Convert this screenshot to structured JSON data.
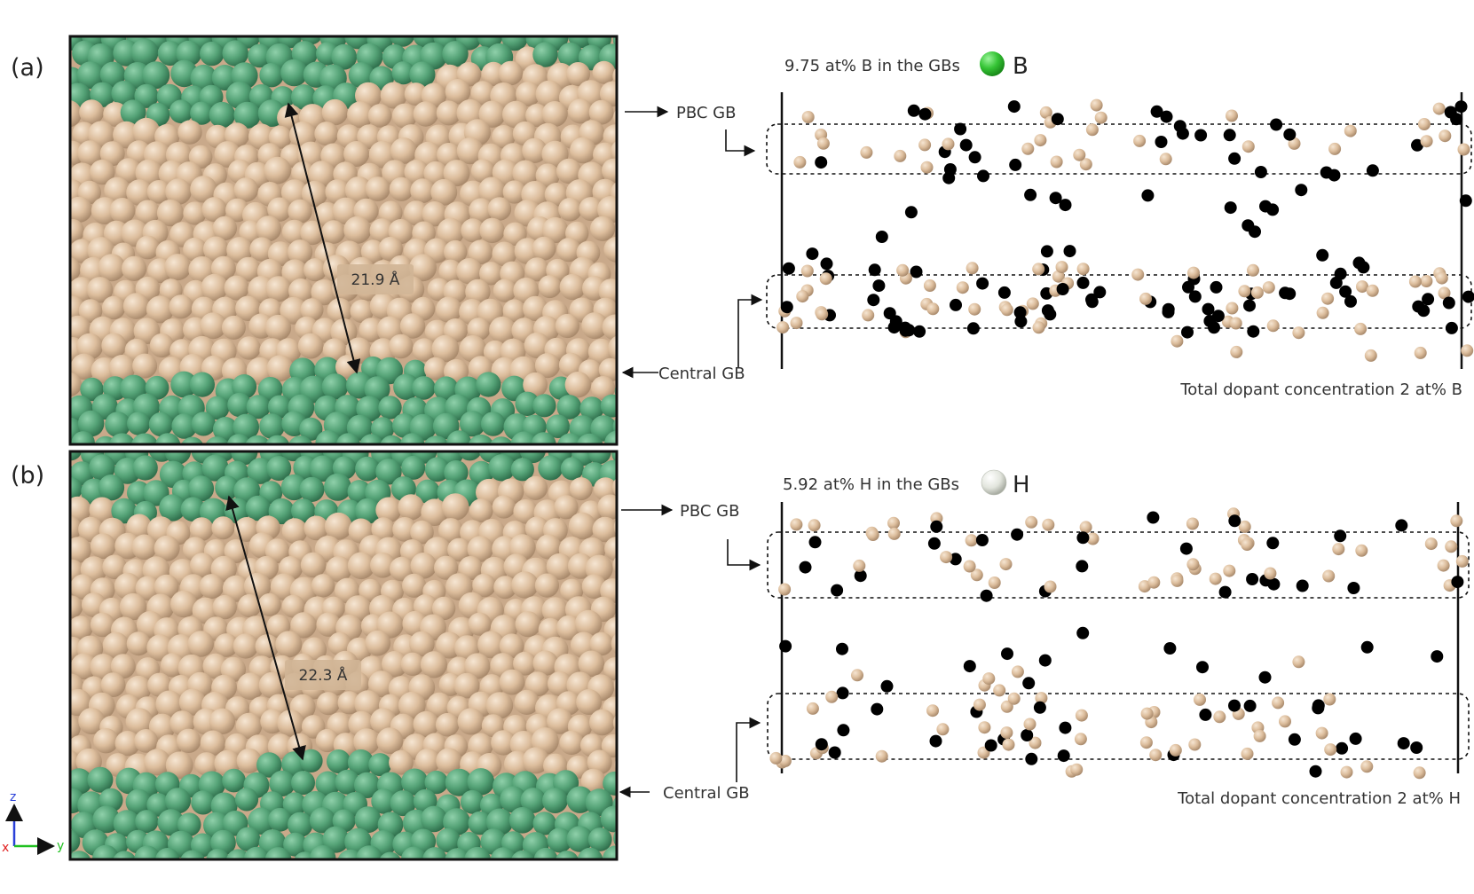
{
  "panels": [
    {
      "letter": "(a)",
      "pbc_label": "PBC GB",
      "central_label": "Central GB",
      "distance_label": "21.9 Å",
      "gb_concentration": "9.75 at% B in the GBs",
      "dopant_symbol": "B",
      "total_concentration": "Total dopant concentration 2 at% B",
      "dopant_color": "#3cc83c"
    },
    {
      "letter": "(b)",
      "pbc_label": "PBC GB",
      "central_label": "Central GB",
      "distance_label": "22.3 Å",
      "gb_concentration": "5.92 at% H in the GBs",
      "dopant_symbol": "H",
      "total_concentration": "Total dopant concentration 2 at% H",
      "dopant_color": "#e4e7e0"
    }
  ],
  "axes": {
    "z": "z",
    "x": "x",
    "y": "y"
  },
  "colors": {
    "grain_atom": "#dcbd9c",
    "gb_atom": "#55a377",
    "frame": "#111111",
    "axis_z": "#2a40d8",
    "axis_x": "#e02020",
    "axis_y": "#20c020"
  }
}
